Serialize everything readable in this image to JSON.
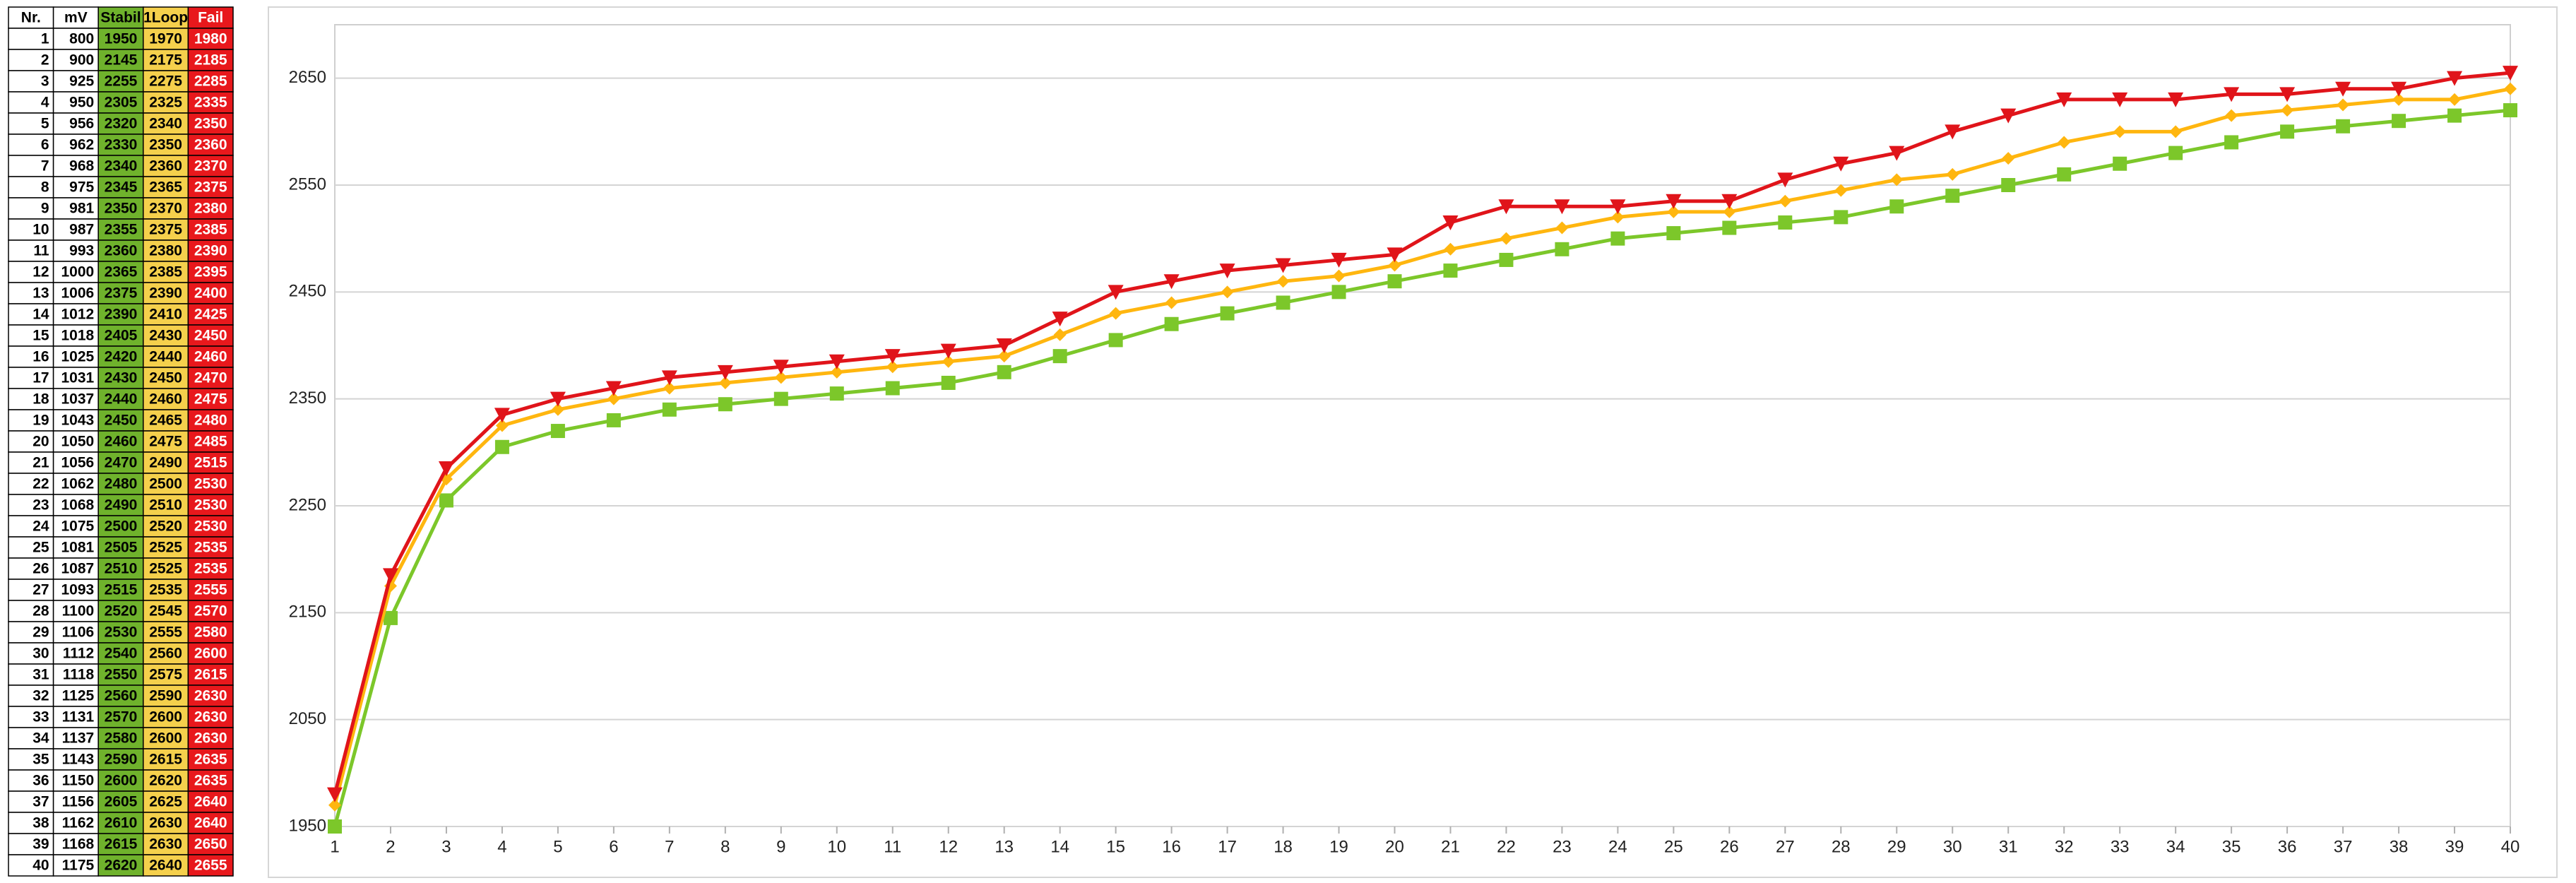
{
  "table": {
    "headers": [
      "Nr.",
      "mV"
    ],
    "mV": [
      800,
      900,
      925,
      950,
      956,
      962,
      968,
      975,
      981,
      987,
      993,
      1000,
      1006,
      1012,
      1018,
      1025,
      1031,
      1037,
      1043,
      1050,
      1056,
      1062,
      1068,
      1075,
      1081,
      1087,
      1093,
      1100,
      1106,
      1112,
      1118,
      1125,
      1131,
      1137,
      1143,
      1150,
      1156,
      1162,
      1168,
      1175
    ]
  },
  "chart_data": {
    "type": "line",
    "x": [
      1,
      2,
      3,
      4,
      5,
      6,
      7,
      8,
      9,
      10,
      11,
      12,
      13,
      14,
      15,
      16,
      17,
      18,
      19,
      20,
      21,
      22,
      23,
      24,
      25,
      26,
      27,
      28,
      29,
      30,
      31,
      32,
      33,
      34,
      35,
      36,
      37,
      38,
      39,
      40
    ],
    "xlim": [
      1,
      40
    ],
    "xticks": [
      1,
      2,
      3,
      4,
      5,
      6,
      7,
      8,
      9,
      10,
      11,
      12,
      13,
      14,
      15,
      16,
      17,
      18,
      19,
      20,
      21,
      22,
      23,
      24,
      25,
      26,
      27,
      28,
      29,
      30,
      31,
      32,
      33,
      34,
      35,
      36,
      37,
      38,
      39,
      40
    ],
    "ylim": [
      1950,
      2700
    ],
    "yticks": [
      1950,
      2050,
      2150,
      2250,
      2350,
      2450,
      2550,
      2650
    ],
    "grid": true,
    "series": [
      {
        "name": "Stabil",
        "color": "#7cc72a",
        "cell_color": "#6fb22c",
        "text_color": "#000000",
        "marker": "square",
        "values": [
          1950,
          2145,
          2255,
          2305,
          2320,
          2330,
          2340,
          2345,
          2350,
          2355,
          2360,
          2365,
          2375,
          2390,
          2405,
          2420,
          2430,
          2440,
          2450,
          2460,
          2470,
          2480,
          2490,
          2500,
          2505,
          2510,
          2515,
          2520,
          2530,
          2540,
          2550,
          2560,
          2570,
          2580,
          2590,
          2600,
          2605,
          2610,
          2615,
          2620
        ]
      },
      {
        "name": "1Loop",
        "color": "#ffb60f",
        "cell_color": "#f5d04c",
        "text_color": "#000000",
        "marker": "diamond",
        "values": [
          1970,
          2175,
          2275,
          2325,
          2340,
          2350,
          2360,
          2365,
          2370,
          2375,
          2380,
          2385,
          2390,
          2410,
          2430,
          2440,
          2450,
          2460,
          2465,
          2475,
          2490,
          2500,
          2510,
          2520,
          2525,
          2525,
          2535,
          2545,
          2555,
          2560,
          2575,
          2590,
          2600,
          2600,
          2615,
          2620,
          2625,
          2630,
          2630,
          2640
        ]
      },
      {
        "name": "Fail",
        "color": "#e0141a",
        "cell_color": "#e8181c",
        "text_color": "#ffffff",
        "marker": "triangle-down",
        "values": [
          1980,
          2185,
          2285,
          2335,
          2350,
          2360,
          2370,
          2375,
          2380,
          2385,
          2390,
          2395,
          2400,
          2425,
          2450,
          2460,
          2470,
          2475,
          2480,
          2485,
          2515,
          2530,
          2530,
          2530,
          2535,
          2535,
          2555,
          2570,
          2580,
          2600,
          2615,
          2630,
          2630,
          2630,
          2635,
          2635,
          2640,
          2640,
          2650,
          2655
        ]
      }
    ]
  }
}
